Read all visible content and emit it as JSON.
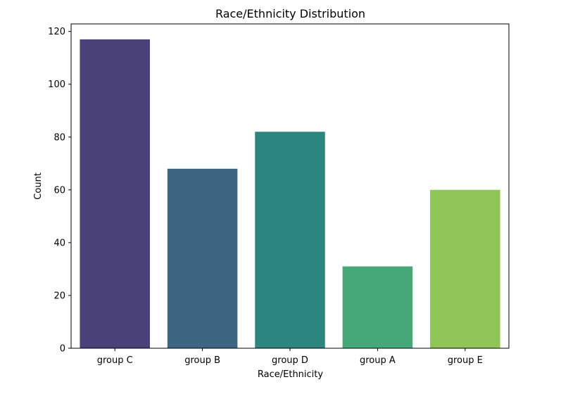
{
  "chart_data": {
    "type": "bar",
    "title": "Race/Ethnicity Distribution",
    "xlabel": "Race/Ethnicity",
    "ylabel": "Count",
    "categories": [
      "group C",
      "group B",
      "group D",
      "group A",
      "group E"
    ],
    "values": [
      117,
      68,
      82,
      31,
      60
    ],
    "colors": [
      "#4a4179",
      "#3e6582",
      "#2e847e",
      "#46a878",
      "#8fc556"
    ],
    "ylim": [
      0,
      122.85
    ],
    "yticks": [
      0,
      20,
      40,
      60,
      80,
      100,
      120
    ],
    "grid": false
  }
}
